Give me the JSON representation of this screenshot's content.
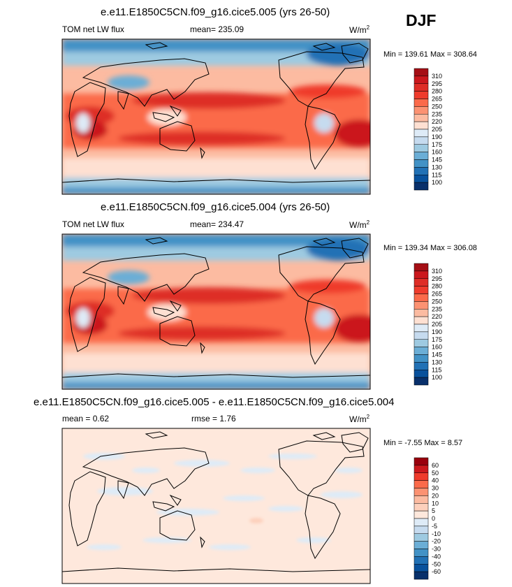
{
  "season": "DJF",
  "panels": [
    {
      "title": "e.e11.E1850C5CN.f09_g16.cice5.005 (yrs 26-50)",
      "left_label": "TOM net LW flux",
      "center_label": "mean= 235.09",
      "units": "W/m",
      "units_exp": "2",
      "minmax": "Min = 139.61 Max = 308.64"
    },
    {
      "title": "e.e11.E1850C5CN.f09_g16.cice5.004 (yrs 26-50)",
      "left_label": "TOM net LW flux",
      "center_label": "mean= 234.47",
      "units": "W/m",
      "units_exp": "2",
      "minmax": "Min = 139.34 Max = 306.08"
    },
    {
      "title": "e.e11.E1850C5CN.f09_g16.cice5.005 - e.e11.E1850C5CN.f09_g16.cice5.004",
      "left_label": "mean =   0.62",
      "center_label": "rmse =   1.76",
      "units": "W/m",
      "units_exp": "2",
      "minmax": "Min =  -7.55 Max =  8.57"
    }
  ],
  "chart_data": [
    {
      "type": "heatmap",
      "title": "e.e11.E1850C5CN.f09_g16.cice5.005 (yrs 26-50)",
      "variable": "TOM net LW flux",
      "units": "W/m2",
      "mean": 235.09,
      "min": 139.61,
      "max": 308.64,
      "colorbar_levels": [
        "310",
        "295",
        "280",
        "265",
        "250",
        "235",
        "220",
        "205",
        "190",
        "175",
        "160",
        "145",
        "130",
        "115",
        "100"
      ],
      "colorbar_colors": [
        "#a50f15",
        "#cb181d",
        "#de2d26",
        "#ef3b2c",
        "#fb6a4a",
        "#fc9272",
        "#fcbba1",
        "#fee0d2",
        "#deebf7",
        "#c6dbef",
        "#9ecae1",
        "#6baed6",
        "#4292c6",
        "#2171b5",
        "#08519c",
        "#08306b"
      ]
    },
    {
      "type": "heatmap",
      "title": "e.e11.E1850C5CN.f09_g16.cice5.004 (yrs 26-50)",
      "variable": "TOM net LW flux",
      "units": "W/m2",
      "mean": 234.47,
      "min": 139.34,
      "max": 306.08,
      "colorbar_levels": [
        "310",
        "295",
        "280",
        "265",
        "250",
        "235",
        "220",
        "205",
        "190",
        "175",
        "160",
        "145",
        "130",
        "115",
        "100"
      ],
      "colorbar_colors": [
        "#a50f15",
        "#cb181d",
        "#de2d26",
        "#ef3b2c",
        "#fb6a4a",
        "#fc9272",
        "#fcbba1",
        "#fee0d2",
        "#deebf7",
        "#c6dbef",
        "#9ecae1",
        "#6baed6",
        "#4292c6",
        "#2171b5",
        "#08519c",
        "#08306b"
      ]
    },
    {
      "type": "heatmap",
      "title": "e.e11.E1850C5CN.f09_g16.cice5.005 - e.e11.E1850C5CN.f09_g16.cice5.004",
      "units": "W/m2",
      "mean": 0.62,
      "rmse": 1.76,
      "min": -7.55,
      "max": 8.57,
      "colorbar_levels": [
        "60",
        "50",
        "40",
        "30",
        "20",
        "10",
        "5",
        "0",
        "-5",
        "-10",
        "-20",
        "-30",
        "-40",
        "-50",
        "-60"
      ],
      "colorbar_colors": [
        "#99000d",
        "#cb181d",
        "#ef3b2c",
        "#fb6a4a",
        "#fc9272",
        "#fcbba1",
        "#fdd0bc",
        "#fee8dc",
        "#deebf7",
        "#c6dbef",
        "#9ecae1",
        "#6baed6",
        "#4292c6",
        "#2171b5",
        "#08519c",
        "#08306b"
      ]
    }
  ]
}
